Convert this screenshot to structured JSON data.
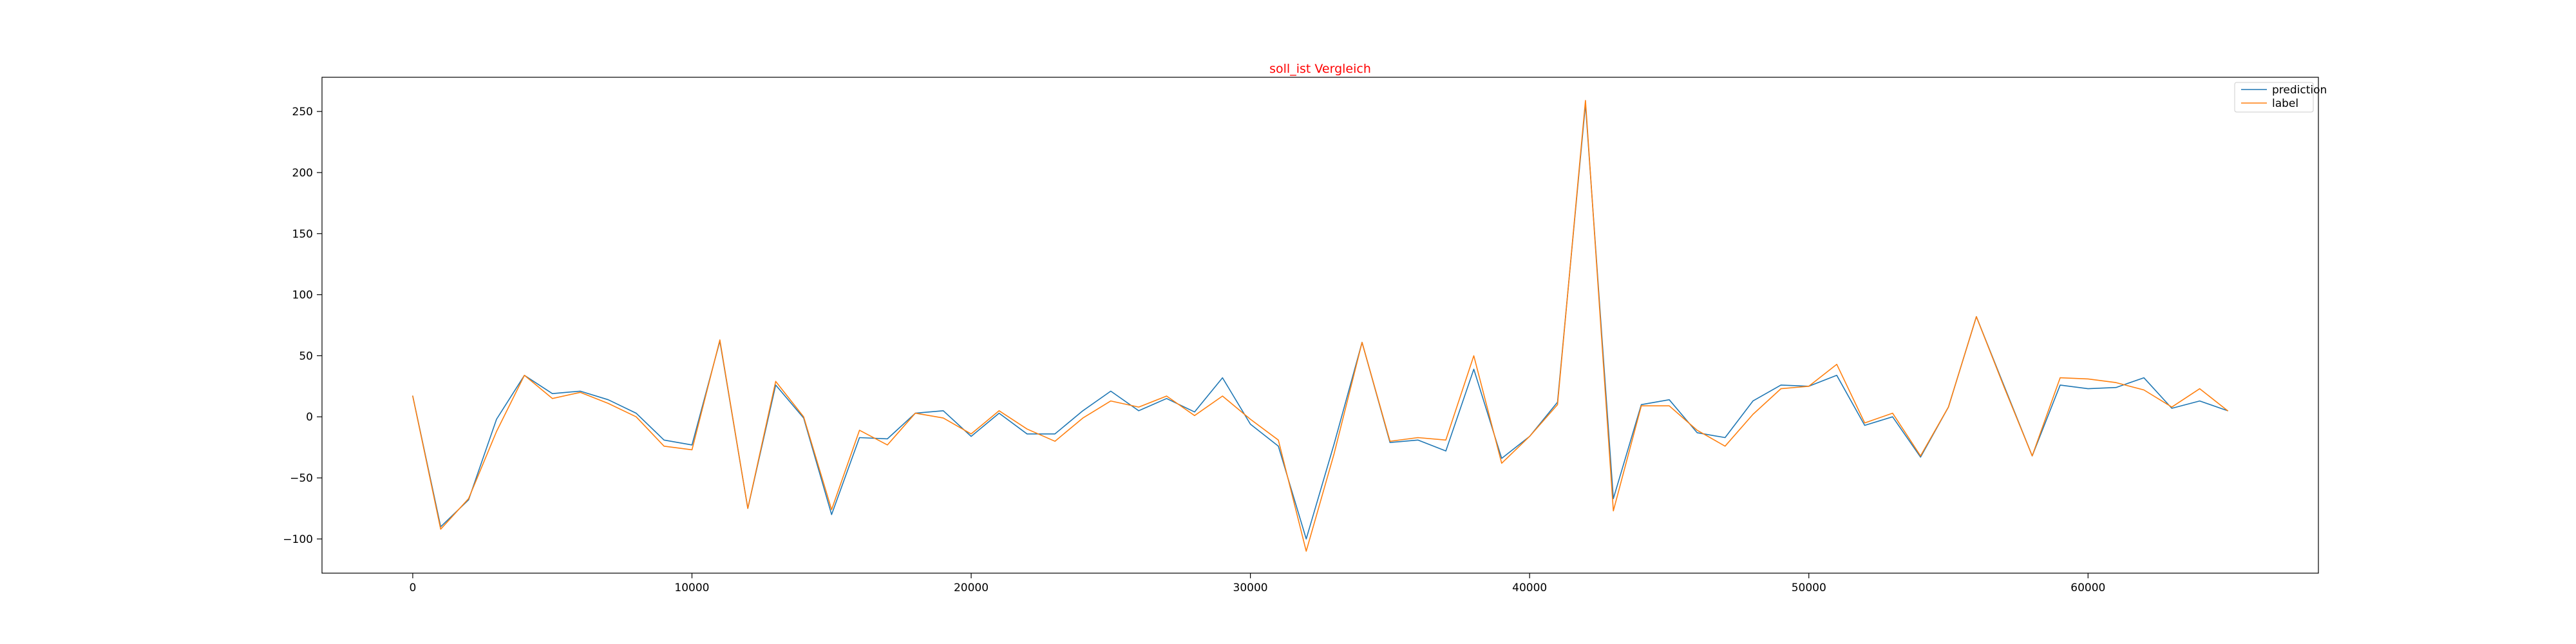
{
  "chart_data": {
    "type": "line",
    "title": "soll_ist Vergleich",
    "xlabel": "",
    "ylabel": "",
    "xlim": [
      -3250,
      68250
    ],
    "ylim": [
      -128,
      278
    ],
    "xticks": [
      0,
      10000,
      20000,
      30000,
      40000,
      50000,
      60000
    ],
    "yticks": [
      -100,
      -50,
      0,
      50,
      100,
      150,
      200,
      250
    ],
    "grid": false,
    "legend_position": "top-right",
    "x": [
      0,
      1000,
      2000,
      3000,
      4000,
      5000,
      6000,
      7000,
      8000,
      9000,
      10000,
      11000,
      12000,
      13000,
      14000,
      15000,
      16000,
      17000,
      18000,
      19000,
      20000,
      21000,
      22000,
      23000,
      24000,
      25000,
      26000,
      27000,
      28000,
      29000,
      30000,
      31000,
      32000,
      33000,
      34000,
      35000,
      36000,
      37000,
      38000,
      39000,
      40000,
      41000,
      42000,
      43000,
      44000,
      45000,
      46000,
      47000,
      48000,
      49000,
      50000,
      51000,
      52000,
      53000,
      54000,
      55000,
      56000,
      57000,
      58000,
      59000,
      60000,
      61000,
      62000,
      63000,
      64000,
      65000
    ],
    "series": [
      {
        "name": "prediction",
        "color": "#1f77b4",
        "values": [
          17,
          -90,
          -68,
          -2,
          34,
          19,
          21,
          14,
          3,
          -19,
          -23,
          62,
          -75,
          26,
          -1,
          -80,
          -17,
          -18,
          3,
          5,
          -16,
          3,
          -14,
          -14,
          5,
          21,
          5,
          15,
          4,
          32,
          -6,
          -24,
          -100,
          -22,
          61,
          -21,
          -19,
          -28,
          39,
          -34,
          -16,
          12,
          256,
          -67,
          10,
          14,
          -13,
          -17,
          13,
          26,
          25,
          34,
          -7,
          0,
          -33,
          8,
          82,
          25,
          -32,
          26,
          23,
          24,
          32,
          7,
          13,
          5
        ]
      },
      {
        "name": "label",
        "color": "#ff7f0e",
        "values": [
          17,
          -92,
          -67,
          -12,
          34,
          15,
          20,
          11,
          0,
          -24,
          -27,
          63,
          -75,
          29,
          0,
          -76,
          -11,
          -23,
          3,
          -1,
          -14,
          5,
          -10,
          -20,
          -1,
          13,
          8,
          17,
          1,
          17,
          -2,
          -19,
          -110,
          -30,
          61,
          -20,
          -17,
          -19,
          50,
          -38,
          -16,
          10,
          259,
          -77,
          9,
          9,
          -11,
          -24,
          2,
          23,
          25,
          43,
          -5,
          3,
          -32,
          8,
          82,
          24,
          -32,
          32,
          31,
          28,
          22,
          8,
          23,
          5
        ]
      }
    ]
  }
}
